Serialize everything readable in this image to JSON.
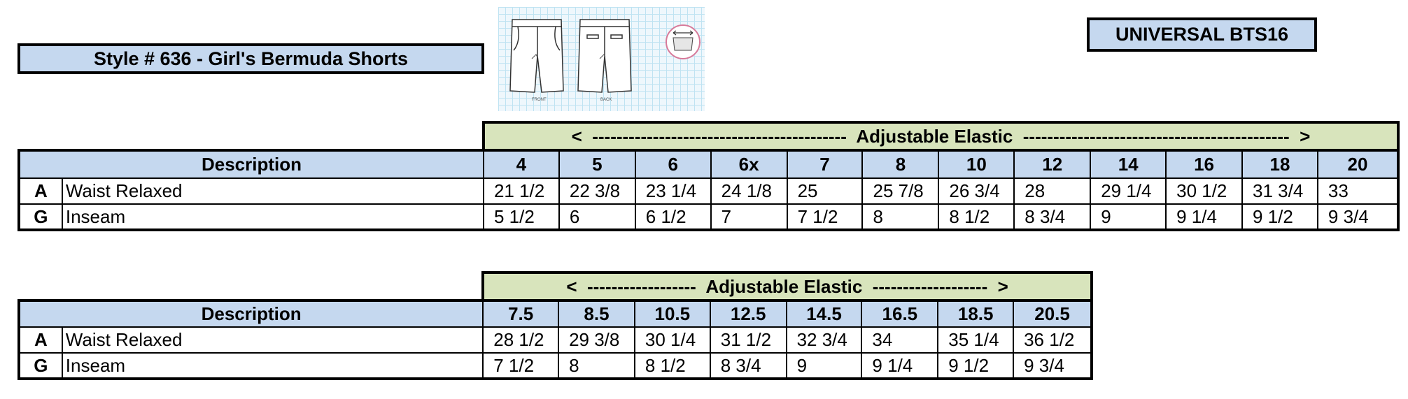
{
  "header": {
    "style_title": "Style # 636 - Girl's Bermuda Shorts",
    "brand_code": "UNIVERSAL BTS16"
  },
  "sketch": {
    "front_label": "FRONT",
    "back_label": "BACK"
  },
  "table1": {
    "band_label": "<  ------------------------------------------  Adjustable Elastic  --------------------------------------------  >",
    "description_header": "Description",
    "sizes": [
      "4",
      "5",
      "6",
      "6x",
      "7",
      "8",
      "10",
      "12",
      "14",
      "16",
      "18",
      "20"
    ],
    "rows": [
      {
        "code": "A",
        "label": "Waist Relaxed",
        "values": [
          "21 1/2",
          "22 3/8",
          "23 1/4",
          "24 1/8",
          "25",
          "25 7/8",
          "26 3/4",
          "28",
          "29 1/4",
          "30 1/2",
          "31 3/4",
          "33"
        ]
      },
      {
        "code": "G",
        "label": "Inseam",
        "values": [
          "5 1/2",
          "6",
          "6 1/2",
          "7",
          "7 1/2",
          "8",
          "8 1/2",
          "8 3/4",
          "9",
          "9 1/4",
          "9 1/2",
          "9 3/4"
        ]
      }
    ]
  },
  "table2": {
    "band_label": "<  ------------------  Adjustable Elastic  -------------------  >",
    "description_header": "Description",
    "sizes": [
      "7.5",
      "8.5",
      "10.5",
      "12.5",
      "14.5",
      "16.5",
      "18.5",
      "20.5"
    ],
    "rows": [
      {
        "code": "A",
        "label": "Waist Relaxed",
        "values": [
          "28 1/2",
          "29 3/8",
          "30 1/4",
          "31 1/2",
          "32 3/4",
          "34",
          "35 1/4",
          "36 1/2"
        ]
      },
      {
        "code": "G",
        "label": "Inseam",
        "values": [
          "7 1/2",
          "8",
          "8 1/2",
          "8 3/4",
          "9",
          "9 1/4",
          "9 1/2",
          "9 3/4"
        ]
      }
    ]
  }
}
